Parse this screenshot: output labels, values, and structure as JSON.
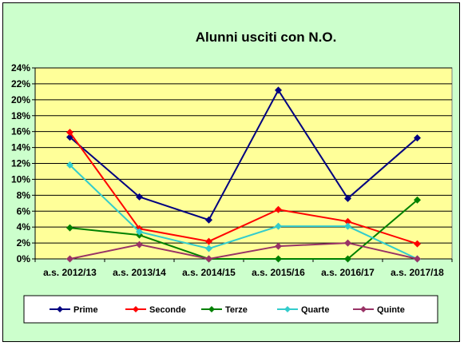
{
  "chart_data": {
    "type": "line",
    "title": "Alunni usciti con N.O.",
    "categories": [
      "a.s. 2012/13",
      "a.s. 2013/14",
      "a.s. 2014/15",
      "a.s. 2015/16",
      "a.s. 2016/17",
      "a.s. 2017/18"
    ],
    "y_ticks": [
      "0%",
      "2%",
      "4%",
      "6%",
      "8%",
      "10%",
      "12%",
      "14%",
      "16%",
      "18%",
      "20%",
      "22%",
      "24%"
    ],
    "ylim": [
      0,
      24
    ],
    "grid": "horizontal",
    "legend_position": "bottom",
    "plot_background": "#ffff99",
    "series": [
      {
        "name": "Prime",
        "color": "#000080",
        "values": [
          15.3,
          7.8,
          4.9,
          21.2,
          7.6,
          15.2
        ]
      },
      {
        "name": "Seconde",
        "color": "#ff0000",
        "values": [
          15.9,
          3.8,
          2.2,
          6.2,
          4.7,
          1.9
        ]
      },
      {
        "name": "Terze",
        "color": "#008000",
        "values": [
          3.9,
          3.0,
          0.0,
          0.0,
          0.0,
          7.4
        ]
      },
      {
        "name": "Quarte",
        "color": "#33cccc",
        "values": [
          11.8,
          3.4,
          1.3,
          4.1,
          4.1,
          0.0
        ]
      },
      {
        "name": "Quinte",
        "color": "#993366",
        "values": [
          0.0,
          1.8,
          0.0,
          1.6,
          2.0,
          0.0
        ]
      }
    ]
  }
}
